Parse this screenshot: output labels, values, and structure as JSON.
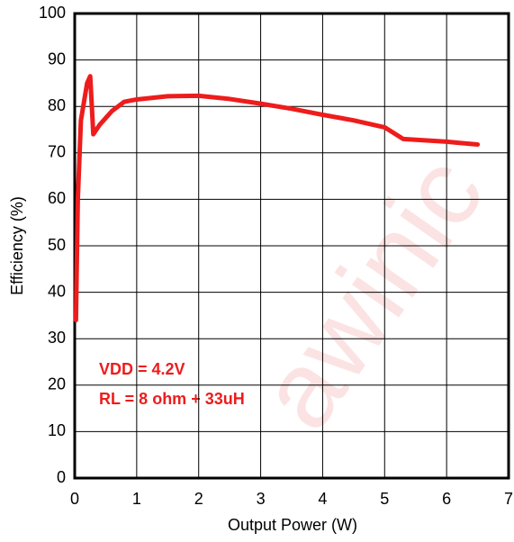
{
  "chart_data": {
    "type": "line",
    "x": [
      0.02,
      0.05,
      0.1,
      0.2,
      0.25,
      0.3,
      0.4,
      0.6,
      0.8,
      1.0,
      1.5,
      2.0,
      2.5,
      3.0,
      3.5,
      4.0,
      4.5,
      5.0,
      5.3,
      6.0,
      6.5
    ],
    "values": [
      34,
      60,
      77,
      85,
      86.5,
      74,
      76,
      79,
      81,
      81.5,
      82.2,
      82.3,
      81.6,
      80.6,
      79.5,
      78.2,
      77,
      75.5,
      73,
      72.4,
      71.8
    ],
    "color": "#ee1c1c",
    "xlim": [
      0,
      7
    ],
    "xticks": [
      0,
      1,
      2,
      3,
      4,
      5,
      6,
      7
    ],
    "ylim": [
      0,
      100
    ],
    "yticks": [
      0,
      10,
      20,
      30,
      40,
      50,
      60,
      70,
      80,
      90,
      100
    ],
    "grid": true,
    "xlabel": "Output Power (W)",
    "ylabel": "Efficiency (%)",
    "annotations": [
      "VDD = 4.2V",
      "RL = 8 ohm + 33uH"
    ],
    "watermark": "awinic"
  }
}
